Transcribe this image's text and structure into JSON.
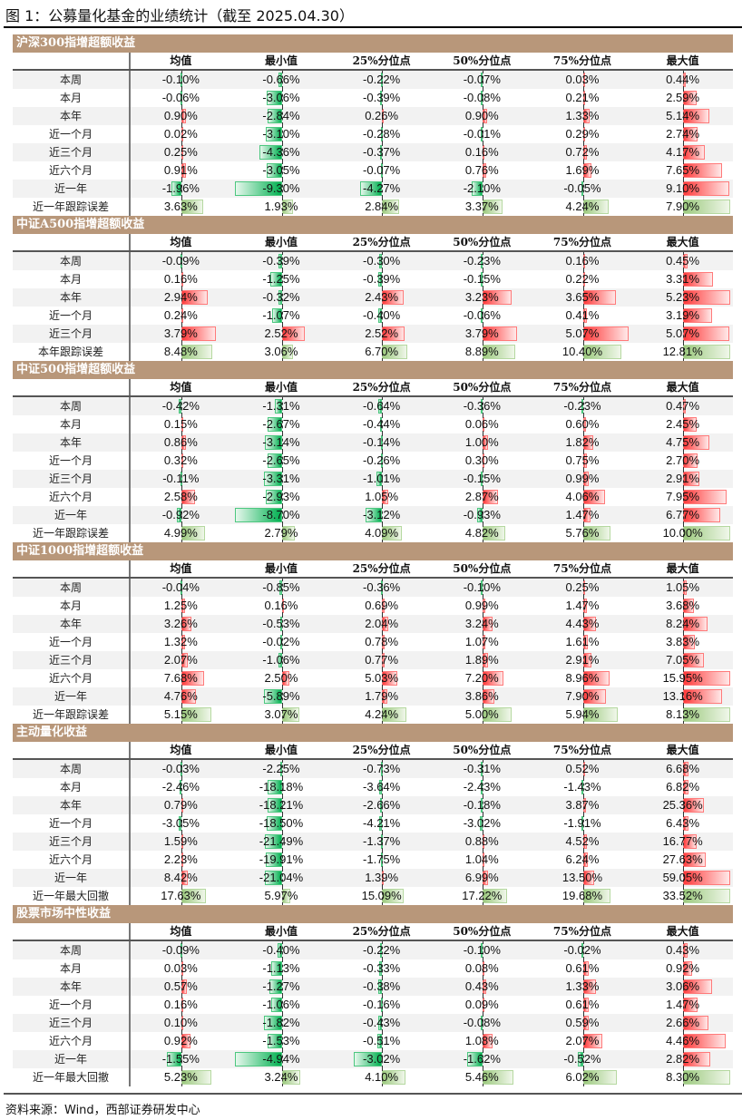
{
  "title": "图 1：公募量化基金的业绩统计（截至 2025.04.30）",
  "source": "资料来源：Wind，西部证券研发中心",
  "colors": {
    "header_bar": "#b8977a",
    "positive_bar": "#ff3b3b",
    "negative_bar": "#00b050",
    "error_bar": "#9cc97e"
  },
  "columns": [
    "均值",
    "最小值",
    "25%分位点",
    "50%分位点",
    "75%分位点",
    "最大值"
  ],
  "sections": [
    {
      "title": "沪深300指增超额收益",
      "rows": [
        {
          "label": "本周",
          "values": [
            "-0.10%",
            "-0.66%",
            "-0.22%",
            "-0.07%",
            "0.03%",
            "0.44%"
          ]
        },
        {
          "label": "本月",
          "values": [
            "-0.06%",
            "-3.06%",
            "-0.39%",
            "-0.08%",
            "0.21%",
            "2.59%"
          ]
        },
        {
          "label": "本年",
          "values": [
            "0.90%",
            "-2.84%",
            "0.26%",
            "0.90%",
            "1.33%",
            "5.14%"
          ]
        },
        {
          "label": "近一个月",
          "values": [
            "0.02%",
            "-3.10%",
            "-0.28%",
            "-0.01%",
            "0.29%",
            "2.74%"
          ]
        },
        {
          "label": "近三个月",
          "values": [
            "0.25%",
            "-4.36%",
            "-0.37%",
            "0.16%",
            "0.72%",
            "4.17%"
          ]
        },
        {
          "label": "近六个月",
          "values": [
            "0.91%",
            "-3.05%",
            "-0.07%",
            "0.76%",
            "1.69%",
            "7.65%"
          ]
        },
        {
          "label": "近一年",
          "values": [
            "-1.96%",
            "-9.30%",
            "-4.27%",
            "-2.10%",
            "-0.05%",
            "9.10%"
          ]
        },
        {
          "label": "近一年跟踪误差",
          "type": "error",
          "values": [
            "3.63%",
            "1.93%",
            "2.84%",
            "3.37%",
            "4.24%",
            "7.90%"
          ]
        }
      ]
    },
    {
      "title": "中证A500指增超额收益",
      "rows": [
        {
          "label": "本周",
          "values": [
            "-0.09%",
            "-0.39%",
            "-0.30%",
            "-0.23%",
            "0.16%",
            "0.45%"
          ]
        },
        {
          "label": "本月",
          "values": [
            "0.16%",
            "-1.25%",
            "-0.39%",
            "-0.15%",
            "0.22%",
            "3.31%"
          ]
        },
        {
          "label": "本年",
          "values": [
            "2.94%",
            "-0.32%",
            "2.43%",
            "3.23%",
            "3.65%",
            "5.23%"
          ]
        },
        {
          "label": "近一个月",
          "values": [
            "0.24%",
            "-1.07%",
            "-0.40%",
            "-0.06%",
            "0.41%",
            "3.19%"
          ]
        },
        {
          "label": "近三个月",
          "values": [
            "3.79%",
            "2.52%",
            "2.52%",
            "3.79%",
            "5.07%",
            "5.07%"
          ]
        },
        {
          "label": "本年跟踪误差",
          "type": "error",
          "values": [
            "8.48%",
            "3.06%",
            "6.70%",
            "8.89%",
            "10.40%",
            "12.81%"
          ]
        }
      ]
    },
    {
      "title": "中证500指增超额收益",
      "rows": [
        {
          "label": "本周",
          "values": [
            "-0.42%",
            "-1.31%",
            "-0.64%",
            "-0.36%",
            "-0.23%",
            "0.47%"
          ]
        },
        {
          "label": "本月",
          "values": [
            "0.15%",
            "-2.67%",
            "-0.44%",
            "0.06%",
            "0.60%",
            "2.45%"
          ]
        },
        {
          "label": "本年",
          "values": [
            "0.86%",
            "-3.14%",
            "-0.14%",
            "1.00%",
            "1.82%",
            "4.75%"
          ]
        },
        {
          "label": "近一个月",
          "values": [
            "0.32%",
            "-2.65%",
            "-0.26%",
            "0.30%",
            "0.75%",
            "2.70%"
          ]
        },
        {
          "label": "近三个月",
          "values": [
            "-0.11%",
            "-3.31%",
            "-1.01%",
            "-0.15%",
            "0.99%",
            "2.91%"
          ]
        },
        {
          "label": "近六个月",
          "values": [
            "2.58%",
            "-2.93%",
            "1.05%",
            "2.87%",
            "4.06%",
            "7.95%"
          ]
        },
        {
          "label": "近一年",
          "values": [
            "-0.92%",
            "-8.70%",
            "-3.12%",
            "-0.93%",
            "1.47%",
            "6.77%"
          ]
        },
        {
          "label": "近一年跟踪误差",
          "type": "error",
          "values": [
            "4.99%",
            "2.79%",
            "4.09%",
            "4.82%",
            "5.76%",
            "10.00%"
          ]
        }
      ]
    },
    {
      "title": "中证1000指增超额收益",
      "rows": [
        {
          "label": "本周",
          "values": [
            "-0.04%",
            "-0.85%",
            "-0.36%",
            "-0.10%",
            "0.25%",
            "1.05%"
          ]
        },
        {
          "label": "本月",
          "values": [
            "1.25%",
            "0.16%",
            "0.69%",
            "0.99%",
            "1.47%",
            "3.68%"
          ]
        },
        {
          "label": "本年",
          "values": [
            "3.26%",
            "-0.53%",
            "2.04%",
            "3.24%",
            "4.43%",
            "8.24%"
          ]
        },
        {
          "label": "近一个月",
          "values": [
            "1.32%",
            "-0.02%",
            "0.78%",
            "1.07%",
            "1.61%",
            "3.83%"
          ]
        },
        {
          "label": "近三个月",
          "values": [
            "2.07%",
            "-1.06%",
            "0.77%",
            "1.89%",
            "2.91%",
            "7.05%"
          ]
        },
        {
          "label": "近六个月",
          "values": [
            "7.68%",
            "2.50%",
            "5.03%",
            "7.20%",
            "8.96%",
            "15.95%"
          ]
        },
        {
          "label": "近一年",
          "values": [
            "4.76%",
            "-5.89%",
            "1.79%",
            "3.86%",
            "7.90%",
            "13.16%"
          ]
        },
        {
          "label": "近一年跟踪误差",
          "type": "error",
          "values": [
            "5.15%",
            "3.07%",
            "4.24%",
            "5.00%",
            "5.94%",
            "8.13%"
          ]
        }
      ]
    },
    {
      "title": "主动量化收益",
      "rows": [
        {
          "label": "本周",
          "values": [
            "-0.03%",
            "-2.25%",
            "-0.73%",
            "-0.31%",
            "0.52%",
            "6.68%"
          ]
        },
        {
          "label": "本月",
          "values": [
            "-2.46%",
            "-18.18%",
            "-3.64%",
            "-2.43%",
            "-1.43%",
            "6.82%"
          ]
        },
        {
          "label": "本年",
          "values": [
            "0.79%",
            "-18.21%",
            "-2.66%",
            "-0.18%",
            "3.87%",
            "25.36%"
          ]
        },
        {
          "label": "近一个月",
          "values": [
            "-3.05%",
            "-18.50%",
            "-4.21%",
            "-3.02%",
            "-1.91%",
            "6.43%"
          ]
        },
        {
          "label": "近三个月",
          "values": [
            "1.59%",
            "-21.49%",
            "-1.37%",
            "0.88%",
            "4.52%",
            "16.77%"
          ]
        },
        {
          "label": "近六个月",
          "values": [
            "2.23%",
            "-19.91%",
            "-1.75%",
            "1.04%",
            "6.24%",
            "27.63%"
          ]
        },
        {
          "label": "近一年",
          "values": [
            "8.42%",
            "-21.04%",
            "1.39%",
            "6.99%",
            "13.50%",
            "59.05%"
          ]
        },
        {
          "label": "近一年最大回撤",
          "type": "error",
          "values": [
            "17.63%",
            "5.97%",
            "15.09%",
            "17.22%",
            "19.68%",
            "33.52%"
          ]
        }
      ]
    },
    {
      "title": "股票市场中性收益",
      "rows": [
        {
          "label": "本周",
          "values": [
            "-0.09%",
            "-0.40%",
            "-0.22%",
            "-0.10%",
            "-0.02%",
            "0.43%"
          ]
        },
        {
          "label": "本月",
          "values": [
            "0.03%",
            "-1.13%",
            "-0.33%",
            "0.08%",
            "0.61%",
            "0.92%"
          ]
        },
        {
          "label": "本年",
          "values": [
            "0.57%",
            "-1.27%",
            "-0.38%",
            "0.43%",
            "1.33%",
            "3.06%"
          ]
        },
        {
          "label": "近一个月",
          "values": [
            "0.16%",
            "-1.06%",
            "-0.16%",
            "0.09%",
            "0.61%",
            "1.47%"
          ]
        },
        {
          "label": "近三个月",
          "values": [
            "0.10%",
            "-1.82%",
            "-0.43%",
            "-0.08%",
            "0.59%",
            "2.66%"
          ]
        },
        {
          "label": "近六个月",
          "values": [
            "0.92%",
            "-1.53%",
            "-0.51%",
            "1.08%",
            "2.07%",
            "4.46%"
          ]
        },
        {
          "label": "近一年",
          "values": [
            "-1.55%",
            "-4.94%",
            "-3.02%",
            "-1.62%",
            "-0.52%",
            "2.82%"
          ]
        },
        {
          "label": "近一年最大回撤",
          "type": "error",
          "values": [
            "5.23%",
            "3.24%",
            "4.10%",
            "5.46%",
            "6.02%",
            "8.30%"
          ]
        }
      ]
    }
  ]
}
